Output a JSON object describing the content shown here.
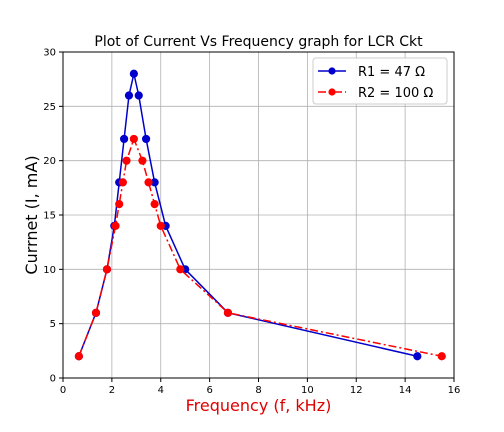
{
  "chart_data": {
    "type": "line",
    "title": "Plot of Current Vs Frequency graph for LCR Ckt",
    "xlabel": "Frequency (f, kHz)",
    "ylabel": "Currnet (I, mA)",
    "xlim": [
      0,
      16
    ],
    "ylim": [
      0,
      30
    ],
    "xticks": [
      0,
      2,
      4,
      6,
      8,
      10,
      12,
      14,
      16
    ],
    "yticks": [
      0,
      5,
      10,
      15,
      20,
      25,
      30
    ],
    "grid": true,
    "legend_position": "top-right",
    "series": [
      {
        "name": "R1 = 47 Ω",
        "color": "#0000cc",
        "marker_color": "#0000cc",
        "line_style": "solid",
        "x": [
          0.65,
          1.35,
          1.8,
          2.1,
          2.3,
          2.5,
          2.7,
          2.9,
          3.1,
          3.4,
          3.75,
          4.2,
          5.0,
          6.75,
          14.5
        ],
        "y": [
          2,
          6,
          10,
          14,
          18,
          22,
          26,
          28,
          26,
          22,
          18,
          14,
          10,
          6,
          2
        ]
      },
      {
        "name": "R2 = 100 Ω",
        "color": "#ff0000",
        "marker_color": "#ff0000",
        "line_style": "dashdot",
        "x": [
          0.65,
          1.35,
          1.8,
          2.15,
          2.3,
          2.45,
          2.6,
          2.9,
          3.25,
          3.5,
          3.75,
          4.0,
          4.8,
          6.75,
          15.5
        ],
        "y": [
          2,
          6,
          10,
          14,
          16,
          18,
          20,
          22,
          20,
          18,
          16,
          14,
          10,
          6,
          2
        ]
      }
    ]
  }
}
